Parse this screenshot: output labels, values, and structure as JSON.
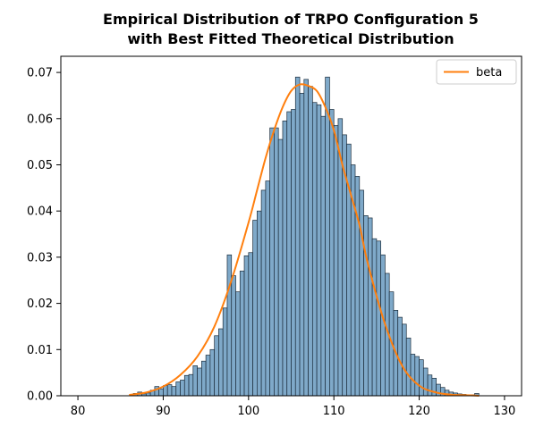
{
  "chart_data": {
    "type": "bar",
    "title": "Empirical Distribution of TRPO Configuration 5",
    "subtitle": "with Best Fitted Theoretical Distribution",
    "xlabel": "",
    "ylabel": "",
    "xlim": [
      78,
      132
    ],
    "ylim": [
      0,
      0.0735
    ],
    "x_ticks": [
      80,
      90,
      100,
      110,
      120,
      130
    ],
    "x_tick_labels": [
      "80",
      "90",
      "100",
      "110",
      "120",
      "130"
    ],
    "y_ticks": [
      0,
      0.01,
      0.02,
      0.03,
      0.04,
      0.05,
      0.06,
      0.07
    ],
    "y_tick_labels": [
      "0.00",
      "0.01",
      "0.02",
      "0.03",
      "0.04",
      "0.05",
      "0.06",
      "0.07"
    ],
    "grid": false,
    "legend": {
      "placement": "top-right",
      "entries": [
        "beta"
      ]
    },
    "histogram": {
      "bin_width": 0.5,
      "bin_starts": [
        86.5,
        87.0,
        87.5,
        88.0,
        88.5,
        89.0,
        89.5,
        90.0,
        90.5,
        91.0,
        91.5,
        92.0,
        92.5,
        93.0,
        93.5,
        94.0,
        94.5,
        95.0,
        95.5,
        96.0,
        96.5,
        97.0,
        97.5,
        98.0,
        98.5,
        99.0,
        99.5,
        100.0,
        100.5,
        101.0,
        101.5,
        102.0,
        102.5,
        103.0,
        103.5,
        104.0,
        104.5,
        105.0,
        105.5,
        106.0,
        106.5,
        107.0,
        107.5,
        108.0,
        108.5,
        109.0,
        109.5,
        110.0,
        110.5,
        111.0,
        111.5,
        112.0,
        112.5,
        113.0,
        113.5,
        114.0,
        114.5,
        115.0,
        115.5,
        116.0,
        116.5,
        117.0,
        117.5,
        118.0,
        118.5,
        119.0,
        119.5,
        120.0,
        120.5,
        121.0,
        121.5,
        122.0,
        122.5,
        123.0,
        123.5,
        124.0,
        124.5,
        125.0,
        125.5,
        126.0,
        126.5
      ],
      "densities": [
        0.0005,
        0.0008,
        0.0004,
        0.0006,
        0.0012,
        0.002,
        0.0015,
        0.0022,
        0.0024,
        0.002,
        0.003,
        0.0034,
        0.0044,
        0.0046,
        0.0065,
        0.006,
        0.0075,
        0.0088,
        0.01,
        0.013,
        0.0145,
        0.019,
        0.0305,
        0.026,
        0.0225,
        0.027,
        0.0303,
        0.031,
        0.038,
        0.04,
        0.0445,
        0.0465,
        0.058,
        0.058,
        0.0555,
        0.0595,
        0.0615,
        0.062,
        0.069,
        0.0655,
        0.0685,
        0.067,
        0.0635,
        0.063,
        0.0605,
        0.069,
        0.062,
        0.0585,
        0.06,
        0.0565,
        0.0545,
        0.05,
        0.0475,
        0.0445,
        0.039,
        0.0385,
        0.034,
        0.0335,
        0.0305,
        0.0265,
        0.0225,
        0.0185,
        0.017,
        0.0155,
        0.0125,
        0.009,
        0.0085,
        0.0078,
        0.006,
        0.0045,
        0.0038,
        0.0025,
        0.0018,
        0.0012,
        0.0008,
        0.0006,
        0.0004,
        0.0003,
        0.0002,
        0.0002,
        0.0005
      ]
    },
    "series": [
      {
        "name": "beta",
        "type": "line",
        "color": "#ff7f0e",
        "x": [
          86,
          88,
          90,
          92,
          94,
          96,
          98,
          100,
          101,
          102,
          103,
          104,
          105,
          106,
          107,
          108,
          109,
          110,
          111,
          112,
          113,
          114,
          116,
          118,
          120,
          122,
          124,
          126,
          127
        ],
        "y": [
          0.0002,
          0.0007,
          0.002,
          0.0045,
          0.0085,
          0.015,
          0.025,
          0.0375,
          0.0445,
          0.0515,
          0.0575,
          0.0625,
          0.066,
          0.0674,
          0.0671,
          0.066,
          0.0625,
          0.0575,
          0.05,
          0.0435,
          0.037,
          0.0285,
          0.0155,
          0.0065,
          0.0022,
          0.0007,
          0.0002,
          0.0001,
          0.0
        ]
      }
    ],
    "colors": {
      "bar_fill": "#7fa9c9",
      "bar_edge": "#1c2d3c",
      "line": "#ff7f0e"
    }
  }
}
